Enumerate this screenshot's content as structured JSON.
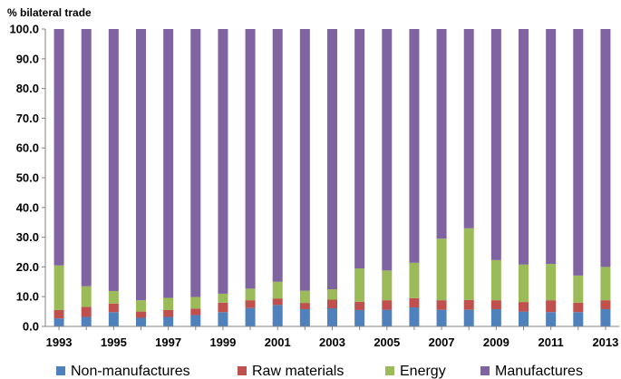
{
  "chart_data": {
    "type": "bar",
    "stacked": true,
    "ylabel": "% bilateral trade",
    "ylim": [
      0,
      100
    ],
    "yticks": [
      "0.0",
      "10.0",
      "20.0",
      "30.0",
      "40.0",
      "50.0",
      "60.0",
      "70.0",
      "80.0",
      "90.0",
      "100.0"
    ],
    "categories": [
      "1993",
      "1994",
      "1995",
      "1996",
      "1997",
      "1998",
      "1999",
      "2000",
      "2001",
      "2002",
      "2003",
      "2004",
      "2005",
      "2006",
      "2007",
      "2008",
      "2009",
      "2010",
      "2011",
      "2012",
      "2013"
    ],
    "xtick_labels": [
      "1993",
      "1995",
      "1997",
      "1999",
      "2001",
      "2003",
      "2005",
      "2007",
      "2009",
      "2011",
      "2013"
    ],
    "legend_position": "bottom",
    "grid": false,
    "series": [
      {
        "name": "Non-manufactures",
        "color": "#4f81bd",
        "values": [
          2.7,
          3.2,
          4.8,
          2.9,
          3.2,
          3.8,
          4.8,
          6.2,
          7.2,
          5.8,
          6.1,
          5.5,
          5.6,
          6.4,
          5.6,
          5.6,
          5.8,
          5.0,
          4.8,
          4.8,
          5.8
        ]
      },
      {
        "name": "Raw materials",
        "color": "#c0504d",
        "values": [
          2.8,
          3.4,
          2.9,
          2.1,
          2.3,
          2.2,
          3.2,
          2.6,
          2.2,
          2.1,
          2.9,
          2.8,
          3.2,
          3.1,
          3.2,
          3.3,
          3.0,
          3.2,
          4.0,
          3.2,
          3.0
        ]
      },
      {
        "name": "Energy",
        "color": "#9bbb59",
        "values": [
          15.0,
          6.9,
          4.2,
          3.8,
          4.1,
          3.9,
          3.0,
          3.9,
          5.6,
          4.1,
          3.5,
          11.2,
          10.0,
          11.9,
          20.7,
          24.1,
          13.5,
          12.6,
          12.2,
          9.1,
          11.2
        ]
      },
      {
        "name": "Manufactures",
        "color": "#8064a2",
        "values": [
          79.5,
          86.5,
          88.1,
          91.2,
          90.4,
          90.1,
          89.0,
          87.3,
          85.0,
          88.0,
          87.5,
          80.5,
          81.2,
          78.6,
          70.5,
          67.0,
          77.7,
          79.2,
          79.0,
          82.9,
          80.0
        ]
      }
    ]
  }
}
